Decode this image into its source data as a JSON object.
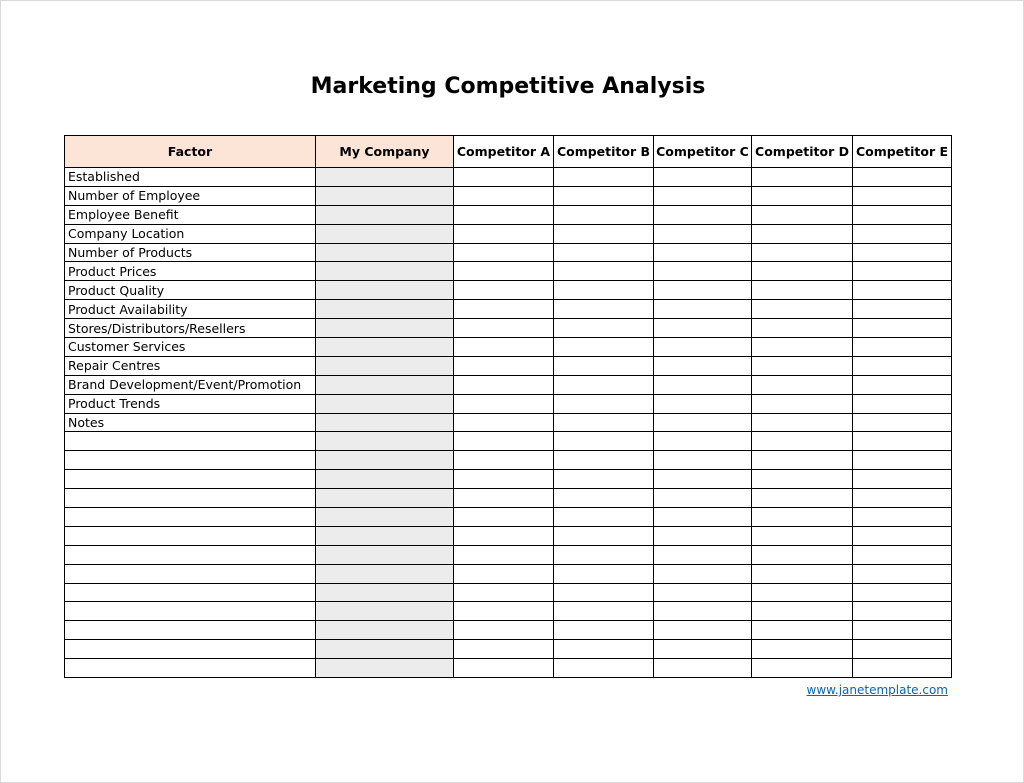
{
  "document": {
    "title": "Marketing Competitive Analysis",
    "website": "www.janetemplate.com"
  },
  "table": {
    "headers": [
      "Factor",
      "My Company",
      "Competitor A",
      "Competitor B",
      "Competitor C",
      "Competitor D",
      "Competitor E"
    ],
    "factors": [
      "Established",
      "Number of Employee",
      "Employee Benefit",
      "Company Location",
      "Number of Products",
      "Product Prices",
      "Product Quality",
      "Product Availability",
      "Stores/Distributors/Resellers",
      "Customer Services",
      "Repair Centres",
      "Brand Development/Event/Promotion",
      "Product Trends",
      "Notes",
      "",
      "",
      "",
      "",
      "",
      "",
      "",
      "",
      "",
      "",
      "",
      "",
      ""
    ]
  },
  "colors": {
    "header_fill": "#fce4d6",
    "my_company_fill": "#ececec",
    "link": "#0563c1"
  }
}
